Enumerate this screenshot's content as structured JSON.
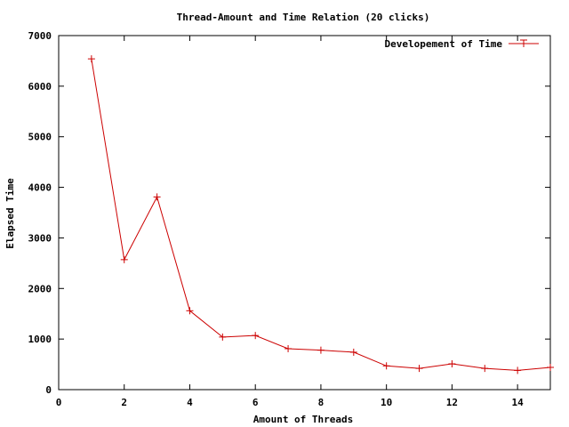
{
  "chart_data": {
    "type": "line",
    "title": "Thread-Amount and Time Relation (20 clicks)",
    "xlabel": "Amount of Threads",
    "ylabel": "Elapsed Time",
    "xlim": [
      0,
      15
    ],
    "ylim": [
      0,
      7000
    ],
    "x_ticks": [
      0,
      2,
      4,
      6,
      8,
      10,
      12,
      14
    ],
    "y_ticks": [
      0,
      1000,
      2000,
      3000,
      4000,
      5000,
      6000,
      7000
    ],
    "grid": false,
    "legend_position": "top-right",
    "series": [
      {
        "name": "Developement of Time",
        "color": "#cc0000",
        "marker": "plus",
        "x": [
          1,
          2,
          3,
          4,
          5,
          6,
          7,
          8,
          9,
          10,
          11,
          12,
          13,
          14,
          15
        ],
        "y": [
          6540,
          2570,
          3810,
          1560,
          1040,
          1070,
          810,
          780,
          740,
          470,
          420,
          510,
          420,
          380,
          440
        ]
      }
    ]
  }
}
